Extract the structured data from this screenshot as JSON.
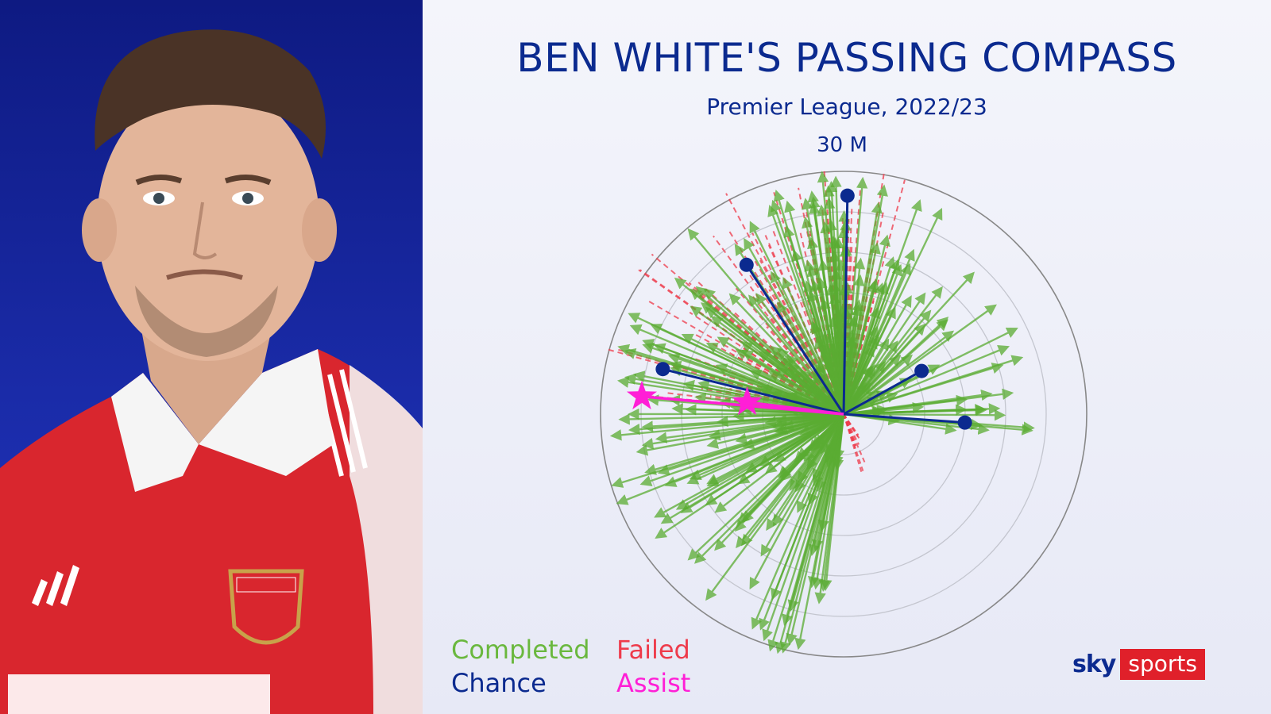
{
  "header": {
    "title": "BEN WHITE'S PASSING COMPASS",
    "subtitle": "Premier League, 2022/23",
    "scale_label": "30 M"
  },
  "legend": {
    "completed": "Completed",
    "failed": "Failed",
    "chance": "Chance",
    "assist": "Assist"
  },
  "logo": {
    "sky": "sky",
    "sports": "sports"
  },
  "colors": {
    "completed": "#5aac32",
    "failed": "#ee3b4b",
    "chance": "#0b2a8f",
    "assist": "#ff1fd6",
    "title": "#0b2a8f"
  },
  "chart_data": {
    "type": "scatter",
    "title": "BEN WHITE'S PASSING COMPASS",
    "subtitle": "Premier League, 2022/23",
    "scale_max_m": 30,
    "rings": 6,
    "units": "metres",
    "angle_convention": "degrees clockwise from forward (up)",
    "chances": [
      {
        "angle": 1,
        "length": 27
      },
      {
        "angle": -33,
        "length": 22
      },
      {
        "angle": 61,
        "length": 11
      },
      {
        "angle": 94,
        "length": 15
      },
      {
        "angle": -76,
        "length": 23
      }
    ],
    "assists": [
      {
        "angle": -83,
        "length": 12
      },
      {
        "angle": -85,
        "length": 25
      }
    ]
  }
}
